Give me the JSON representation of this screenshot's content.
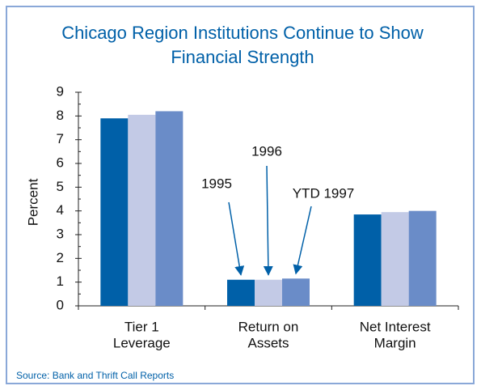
{
  "chart_data": {
    "type": "bar",
    "title": [
      "Chicago Region Institutions Continue to Show",
      "Financial Strength"
    ],
    "ylabel": "Percent",
    "source": "Source:  Bank and Thrift Call Reports",
    "categories": [
      [
        "Tier 1",
        "Leverage"
      ],
      [
        "Return on",
        "Assets"
      ],
      [
        "Net Interest",
        "Margin"
      ]
    ],
    "series": [
      {
        "name": "1995",
        "color": "#0060a8",
        "values": [
          7.9,
          1.1,
          3.85
        ]
      },
      {
        "name": "1996",
        "color": "#c3cae6",
        "values": [
          8.05,
          1.1,
          3.95
        ]
      },
      {
        "name": "YTD 1997",
        "color": "#6a8cc8",
        "values": [
          8.2,
          1.15,
          4.0
        ]
      }
    ],
    "ylim": [
      0,
      9
    ],
    "yticks": [
      0,
      1,
      2,
      3,
      4,
      5,
      6,
      7,
      8,
      9
    ],
    "yminorticks": [
      0.5,
      1.5,
      2.5,
      3.5,
      4.5,
      5.5,
      6.5,
      7.5,
      8.5
    ]
  }
}
